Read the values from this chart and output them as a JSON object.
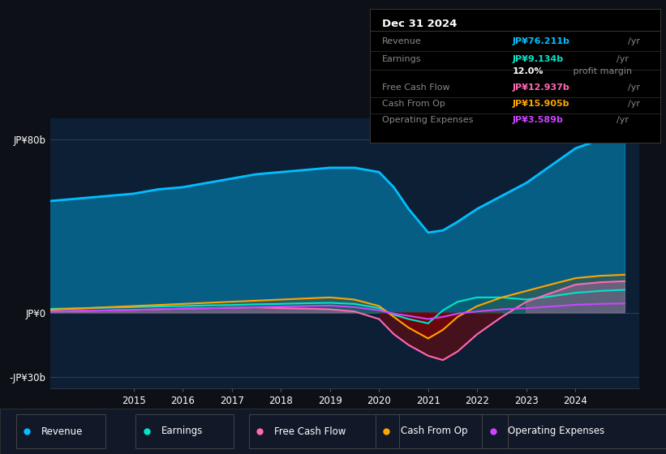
{
  "background_color": "#0d1117",
  "plot_bg_color": "#0d1f35",
  "title_box": {
    "date": "Dec 31 2024",
    "rows": [
      {
        "label": "Revenue",
        "value": "JP¥76.211b",
        "unit": "/yr",
        "value_color": "#00bfff"
      },
      {
        "label": "Earnings",
        "value": "JP¥9.134b",
        "unit": "/yr",
        "value_color": "#00e5cc"
      },
      {
        "label": "",
        "value": "12.0%",
        "unit": " profit margin",
        "value_color": "#ffffff"
      },
      {
        "label": "Free Cash Flow",
        "value": "JP¥12.937b",
        "unit": "/yr",
        "value_color": "#ff69b4"
      },
      {
        "label": "Cash From Op",
        "value": "JP¥15.905b",
        "unit": "/yr",
        "value_color": "#ffa500"
      },
      {
        "label": "Operating Expenses",
        "value": "JP¥3.589b",
        "unit": "/yr",
        "value_color": "#cc44ff"
      }
    ]
  },
  "ytick_vals": [
    -30,
    0,
    80
  ],
  "ytick_labels": [
    "-JP¥30b",
    "JP¥0",
    "JP¥80b"
  ],
  "xtick_years": [
    2015,
    2016,
    2017,
    2018,
    2019,
    2020,
    2021,
    2022,
    2023,
    2024
  ],
  "legend": [
    {
      "label": "Revenue",
      "color": "#00bfff"
    },
    {
      "label": "Earnings",
      "color": "#00e5cc"
    },
    {
      "label": "Free Cash Flow",
      "color": "#ff69b4"
    },
    {
      "label": "Cash From Op",
      "color": "#ffa500"
    },
    {
      "label": "Operating Expenses",
      "color": "#cc44ff"
    }
  ],
  "series": {
    "years": [
      2013.0,
      2013.5,
      2014.0,
      2014.5,
      2015.0,
      2015.5,
      2016.0,
      2016.5,
      2017.0,
      2017.5,
      2018.0,
      2018.5,
      2019.0,
      2019.5,
      2020.0,
      2020.3,
      2020.6,
      2021.0,
      2021.3,
      2021.6,
      2022.0,
      2022.5,
      2023.0,
      2023.5,
      2024.0,
      2024.5,
      2025.0
    ],
    "revenue": [
      51,
      52,
      53,
      54,
      55,
      57,
      58,
      60,
      62,
      64,
      65,
      66,
      67,
      67,
      65,
      58,
      48,
      37,
      38,
      42,
      48,
      54,
      60,
      68,
      76,
      80,
      82
    ],
    "earnings": [
      1.5,
      1.8,
      2.0,
      2.3,
      2.5,
      2.8,
      3.0,
      3.3,
      3.5,
      3.8,
      4.0,
      4.3,
      4.5,
      4.0,
      2.0,
      -1.0,
      -3.0,
      -5.0,
      1.0,
      5.0,
      7.0,
      7.0,
      6.0,
      7.5,
      9.134,
      10.0,
      10.5
    ],
    "free_cash_flow": [
      0.5,
      0.6,
      0.8,
      1.0,
      1.2,
      1.5,
      1.8,
      2.0,
      2.2,
      2.4,
      2.0,
      1.8,
      1.5,
      0.5,
      -3.0,
      -10.0,
      -15.0,
      -20.0,
      -22.0,
      -18.0,
      -10.0,
      -2.0,
      5.0,
      9.0,
      12.937,
      14.0,
      14.5
    ],
    "cash_from_op": [
      1.0,
      1.5,
      2.0,
      2.5,
      3.0,
      3.5,
      4.0,
      4.5,
      5.0,
      5.5,
      6.0,
      6.5,
      7.0,
      6.0,
      3.0,
      -2.0,
      -7.0,
      -12.0,
      -8.0,
      -2.0,
      3.0,
      7.0,
      10.0,
      13.0,
      15.905,
      17.0,
      17.5
    ],
    "operating_expenses": [
      0.3,
      0.5,
      0.8,
      1.0,
      1.2,
      1.5,
      1.8,
      2.0,
      2.2,
      2.5,
      2.8,
      3.0,
      3.2,
      2.5,
      1.0,
      -0.5,
      -1.5,
      -3.0,
      -2.0,
      -0.5,
      0.5,
      1.5,
      2.0,
      2.8,
      3.589,
      4.0,
      4.2
    ]
  },
  "xlim": [
    2013.3,
    2025.3
  ],
  "ylim": [
    -35,
    90
  ]
}
